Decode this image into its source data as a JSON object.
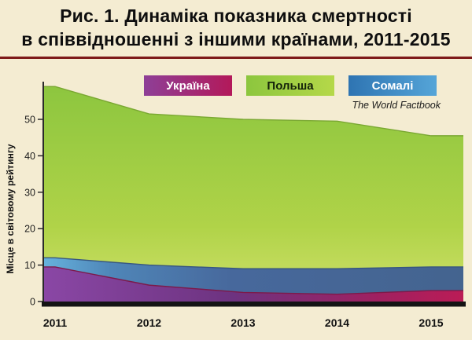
{
  "page": {
    "background": "#f4ecd2",
    "rule_color": "#7e1a1a"
  },
  "title": {
    "line1": "Рис. 1. Динаміка показника смертності",
    "line2": "в співвідношенні з іншими країнами, 2011-2015"
  },
  "source": "The World Factbook",
  "y_axis_title": "Місце в світовому рейтингу",
  "legend": {
    "items": [
      {
        "label": "Україна",
        "gradient": [
          "#8e3f97",
          "#b3195a"
        ],
        "text_color": "#ffffff"
      },
      {
        "label": "Польша",
        "gradient": [
          "#8cc63e",
          "#b5d849"
        ],
        "text_color": "#14220a"
      },
      {
        "label": "Сомалі",
        "gradient": [
          "#2e74b2",
          "#55a5d8"
        ],
        "text_color": "#ffffff"
      }
    ]
  },
  "chart_data": {
    "type": "area",
    "title": "Динаміка показника смертності в співвідношенні з іншими країнами, 2011-2015",
    "x": [
      2011,
      2012,
      2013,
      2014,
      2015
    ],
    "series": [
      {
        "name": "Польша",
        "values": [
          59,
          51.5,
          50,
          49.5,
          45.5
        ],
        "gradient_dir": "vertical",
        "stops": [
          [
            0,
            "#8dc63f"
          ],
          [
            0.65,
            "#b0d348"
          ],
          [
            1,
            "#cfe16b"
          ]
        ],
        "edge": "#7aa832"
      },
      {
        "name": "Сомалі",
        "values": [
          12,
          10,
          9,
          9,
          9.5
        ],
        "gradient_dir": "horizontal",
        "stops": [
          [
            0,
            "#66b2dd"
          ],
          [
            0.16,
            "#4f86b8"
          ],
          [
            0.45,
            "#47689c"
          ],
          [
            1,
            "#44648f"
          ]
        ],
        "edge": "#375680"
      },
      {
        "name": "Україна",
        "values": [
          9.5,
          4.5,
          2.5,
          2,
          3
        ],
        "gradient_dir": "horizontal",
        "stops": [
          [
            0,
            "#8a47a5"
          ],
          [
            0.45,
            "#6d3380"
          ],
          [
            0.8,
            "#a02060"
          ],
          [
            1,
            "#bb1c56"
          ]
        ],
        "edge": "#7c1a4a"
      }
    ],
    "ylabel": "Місце в світовому рейтингу",
    "yticks": [
      0,
      10,
      20,
      30,
      40,
      50
    ],
    "ylim": [
      0,
      60
    ],
    "grid": false,
    "legend_position": "top",
    "note": "overlaid areas, each series drawn from baseline 0; Somalia over Poland, Ukraine in front"
  }
}
